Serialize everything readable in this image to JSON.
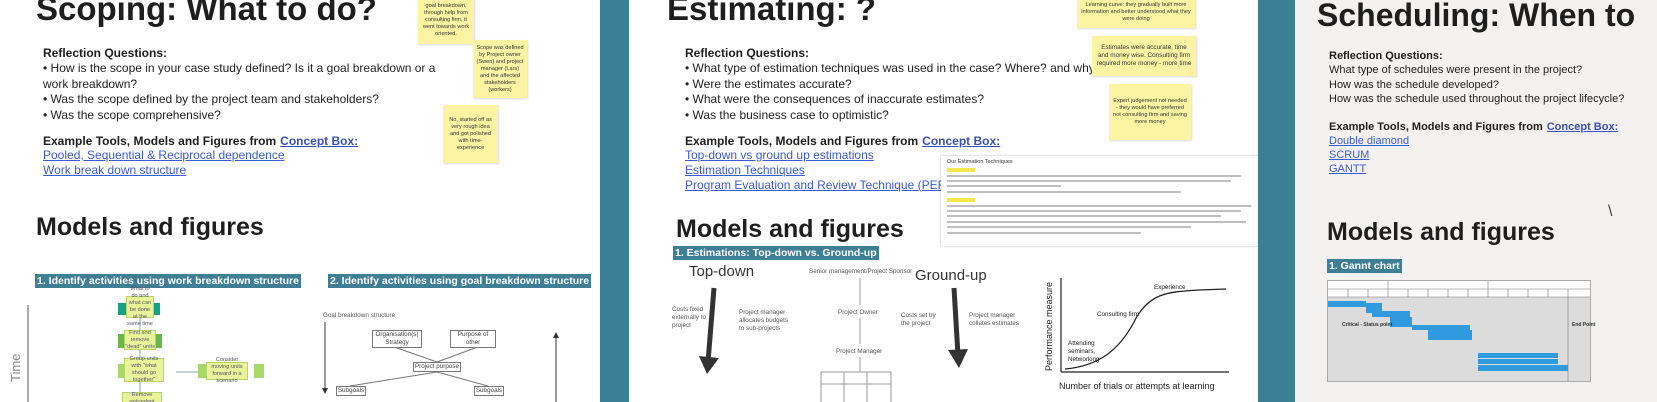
{
  "panels": [
    {
      "title": "Scoping: What to do?",
      "reflection_heading": "Reflection Questions:",
      "questions": [
        "• How is the scope in your case study defined? Is it a goal breakdown or a work breakdown?",
        "• Was the scope defined by the project team and stakeholders?",
        "• Was the scope comprehensive?"
      ],
      "tools_heading": "Example Tools, Models and Figures from",
      "tools_link": "Concept Box:",
      "links": [
        "Pooled, Sequential & Reciprocal dependence",
        "Work break down structure"
      ],
      "models_heading": "Models and figures",
      "sections": [
        "1. Identify activities using  work breakdown structure",
        "2. Identify activities using  goal breakdown structure"
      ],
      "stickies": [
        "goal breakdown, through help from consulting firm, it went towards work oriented.",
        "Scope was defined by Project owner (Swen) and project manager (Lars) and the affected stakeholders (workers)",
        "No, started off as very rough idea and got polished with time-experience"
      ],
      "figure_labels": [
        "What to do and what can be done at the same time",
        "Find and remove \"dead\" units",
        "Group units with \"what should go together\"",
        "Consider moving units forward in a scenario",
        "Remove redundant units",
        "Time",
        "Goal breakdown structure",
        "Organisation(s) Strategy",
        "Purpose of other",
        "Project purpose",
        "Subgoals",
        "Subgoals"
      ]
    },
    {
      "title": "Estimating: ?",
      "reflection_heading": "Reflection Questions:",
      "questions": [
        "• What type of estimation techniques was used in the case? Where? and why?",
        "• Were the estimates accurate?",
        "• What were the consequences of inaccurate estimates?",
        "• Was the business case to optimistic?"
      ],
      "tools_heading": "Example Tools, Models and Figures from",
      "tools_link": "Concept Box:",
      "links": [
        "Top-down vs ground up estimations",
        "Estimation Techniques",
        "Program Evaluation and Review Technique (PERT)"
      ],
      "models_heading": "Models and figures",
      "sections": [
        "1. Estimations: Top-down vs. Ground-up"
      ],
      "stickies": [
        "Learning curve: they gradually built more information and better understood what they were doing",
        "Estimates were accurate, time and money wise. Consulting firm required more money - more time",
        "Expert judgement not needed - they would have preferred not consulting firm and saving more money"
      ],
      "document_title": "Our Estimation Techniques",
      "figure_labels": [
        "Top-down",
        "Ground-up",
        "Senior management/Project Sponsor",
        "Project Owner",
        "Project Manager",
        "Costs fixed externally to project",
        "Project manager allocates budgets to sub-projects",
        "Costs set by the project",
        "Project manager collates estimates",
        "Performance measure",
        "Number of trials or attempts at learning",
        "Experience",
        "Consulting firm",
        "Attending seminars, Networking"
      ]
    },
    {
      "title": "Scheduling: When to",
      "reflection_heading": "Reflection Questions:",
      "questions": [
        "What type of schedules were present in the project?",
        "How was the schedule developed?",
        "How was the schedule used throughout the project lifecycle?"
      ],
      "tools_heading": "Example Tools, Models and Figures from",
      "tools_link": "Concept Box:",
      "links": [
        "Double diamond",
        "SCRUM",
        "GANTT"
      ],
      "models_heading": "Models and figures",
      "sections": [
        "1. Gannt chart"
      ],
      "figure_labels": [
        "Critical - Status point",
        "End Point",
        "\\"
      ]
    }
  ]
}
